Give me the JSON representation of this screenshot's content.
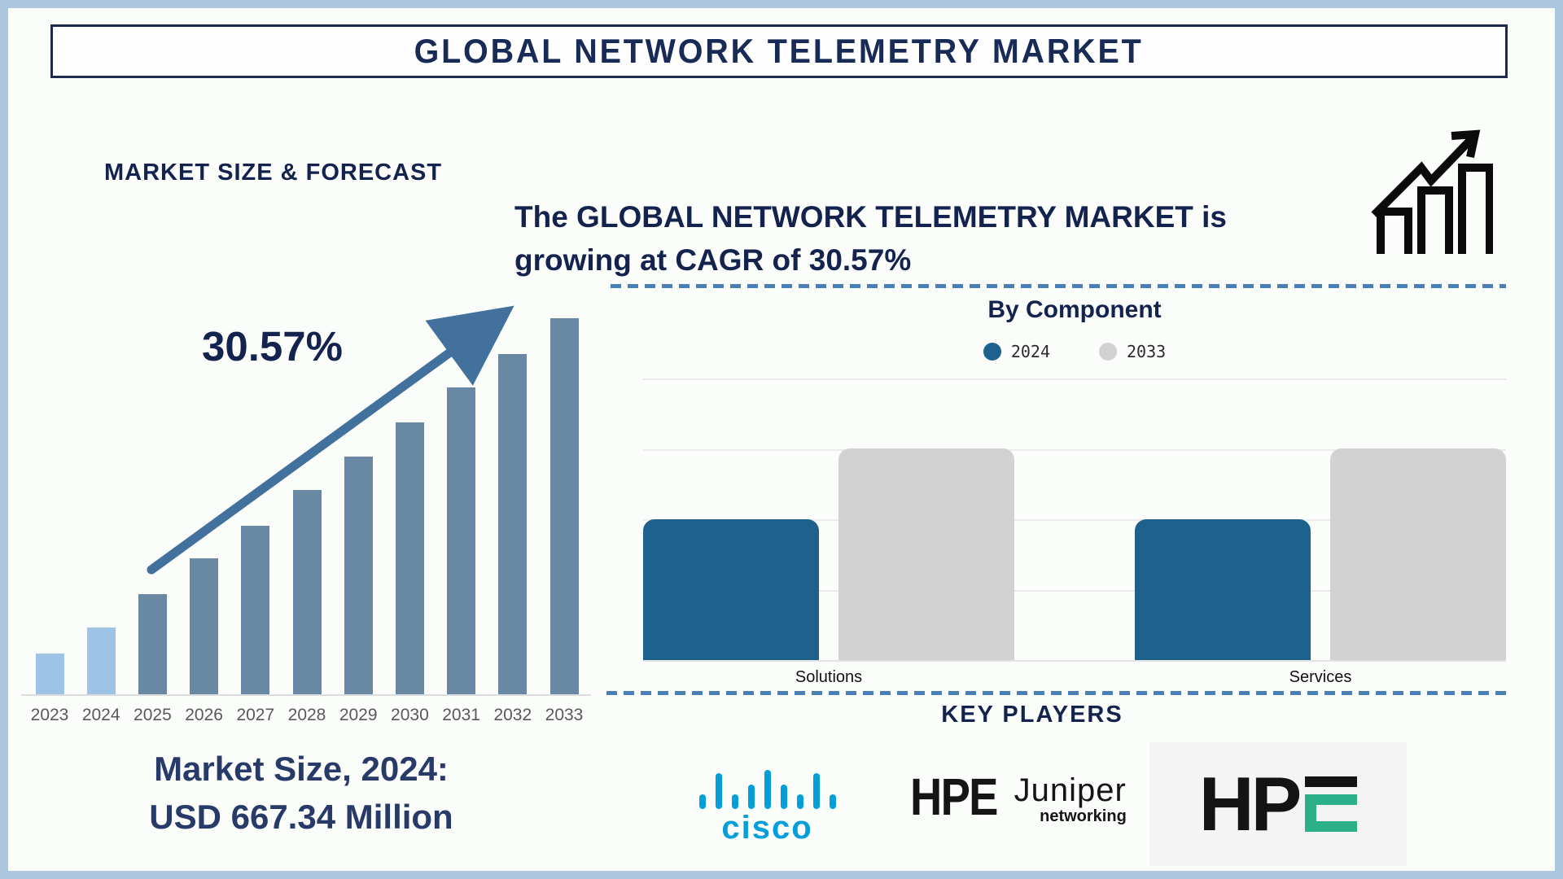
{
  "title": "GLOBAL NETWORK TELEMETRY MARKET",
  "left_panel": {
    "heading": "MARKET SIZE & FORECAST",
    "cagr_value": "30.57%",
    "market_size_line1": "Market Size, 2024:",
    "market_size_line2": "USD 667.34 Million"
  },
  "right_panel": {
    "headline_line1": "The GLOBAL NETWORK TELEMETRY MARKET is",
    "headline_line2": "growing at CAGR of 30.57%",
    "by_component_title": "By Component",
    "key_players_title": "KEY PLAYERS"
  },
  "key_players": {
    "players": [
      {
        "name": "Cisco",
        "logo_text": "cisco"
      },
      {
        "name": "HPE Juniper Networking",
        "logo_hpe": "HPE",
        "logo_juniper": "Juniper",
        "logo_networking": "networking"
      },
      {
        "name": "HPE",
        "logo_text": "HP",
        "logo_green_letter": "E"
      }
    ]
  },
  "icons": {
    "growth_chart": "growth-chart-icon (three outlined rising bars with zigzag up arrow)",
    "growth_arrow": "growth-arrow-icon (diagonal up-right arrow over forecast bars)",
    "legend_dot_2024": "filled blue circle",
    "legend_dot_2033": "filled gray circle"
  },
  "colors": {
    "frame": "#abc6dd",
    "navy_text": "#14234e",
    "forecast_bar": "#6988a4",
    "forecast_bar_highlight": "#9dc3e6",
    "arrow": "#41719c",
    "component_2024": "#1f618d",
    "component_2033": "#d2d2d2",
    "dashed_divider": "#4a7fb5",
    "cisco_blue": "#049fd9",
    "hpe_green": "#2cb08a",
    "year_label": "#595959"
  },
  "chart_data": [
    {
      "type": "bar",
      "title": "MARKET SIZE & FORECAST",
      "categories": [
        "2023",
        "2024",
        "2025",
        "2026",
        "2027",
        "2028",
        "2029",
        "2030",
        "2031",
        "2032",
        "2033"
      ],
      "values_pct_of_max": [
        10.8,
        17.7,
        26.6,
        36.1,
        44.8,
        54.3,
        63.2,
        72.3,
        81.6,
        90.5,
        100
      ],
      "known_values": {
        "2024": "USD 667.34 Million"
      },
      "annotation": "30.57% CAGR shown with rising arrow",
      "bar_color": "#6988a4",
      "highlight_color": "#9dc3e6",
      "highlight_count": 2,
      "xlabel": "",
      "ylabel": "",
      "y_axis_ticks_shown": false
    },
    {
      "type": "bar",
      "title": "By Component",
      "categories": [
        "Solutions",
        "Services"
      ],
      "series": [
        {
          "name": "2024",
          "values": [
            2,
            2
          ],
          "color": "#1f618d"
        },
        {
          "name": "2033",
          "values": [
            3,
            3
          ],
          "color": "#d2d2d2"
        }
      ],
      "ylim": [
        0,
        4
      ],
      "value_units": "relative (no numeric axis labels shown)",
      "gridlines": true,
      "legend_position": "top"
    }
  ]
}
